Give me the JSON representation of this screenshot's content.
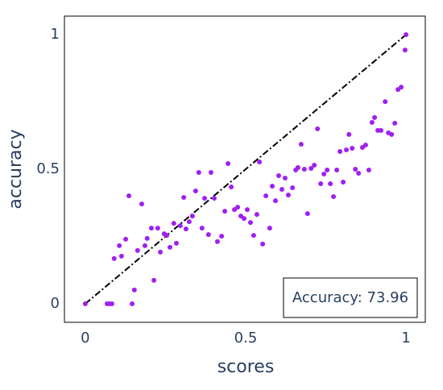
{
  "chart_data": {
    "type": "scatter",
    "x_label": "scores",
    "y_label": "accuracy",
    "annotation": "Accuracy: 73.96",
    "xlim": [
      -0.065,
      1.06
    ],
    "ylim": [
      -0.069,
      1.069
    ],
    "xticks": [
      0,
      0.5,
      1
    ],
    "yticks": [
      0,
      0.5,
      1
    ],
    "reference_line": {
      "x": [
        0,
        1
      ],
      "y": [
        0,
        1
      ],
      "color": "#000000"
    },
    "series": [
      {
        "color": "#a020f0",
        "x": [
          0,
          0.068,
          0.075,
          0.083,
          0.146,
          0.153,
          0.09,
          0.106,
          0.113,
          0.126,
          0.136,
          0.163,
          0.176,
          0.186,
          0.193,
          0.206,
          0.214,
          0.226,
          0.234,
          0.246,
          0.254,
          0.264,
          0.276,
          0.284,
          0.296,
          0.307,
          0.314,
          0.324,
          0.334,
          0.344,
          0.354,
          0.364,
          0.372,
          0.384,
          0.392,
          0.402,
          0.412,
          0.425,
          0.435,
          0.445,
          0.455,
          0.465,
          0.475,
          0.485,
          0.495,
          0.505,
          0.515,
          0.525,
          0.535,
          0.543,
          0.553,
          0.563,
          0.575,
          0.583,
          0.593,
          0.603,
          0.613,
          0.623,
          0.633,
          0.646,
          0.656,
          0.663,
          0.673,
          0.683,
          0.693,
          0.704,
          0.714,
          0.724,
          0.734,
          0.744,
          0.754,
          0.764,
          0.774,
          0.784,
          0.794,
          0.804,
          0.814,
          0.822,
          0.832,
          0.842,
          0.852,
          0.864,
          0.874,
          0.884,
          0.894,
          0.902,
          0.912,
          0.922,
          0.935,
          0.945,
          0.955,
          0.965,
          0.975,
          0.985,
          0.997,
          1
        ],
        "y": [
          0,
          0,
          0,
          0,
          0,
          0.051,
          0.168,
          0.216,
          0.177,
          0.24,
          0.401,
          0.198,
          0.371,
          0.216,
          0.243,
          0.281,
          0.087,
          0.281,
          0.192,
          0.26,
          0.254,
          0.21,
          0.299,
          0.225,
          0.29,
          0.395,
          0.278,
          0.305,
          0.326,
          0.419,
          0.488,
          0.281,
          0.392,
          0.257,
          0.488,
          0.392,
          0.231,
          0.251,
          0.344,
          0.521,
          0.434,
          0.35,
          0.359,
          0.326,
          0.317,
          0.35,
          0.302,
          0.254,
          0.332,
          0.527,
          0.222,
          0.401,
          0.281,
          0.437,
          0.383,
          0.476,
          0.425,
          0.467,
          0.404,
          0.431,
          0.497,
          0.506,
          0.593,
          0.5,
          0.335,
          0.503,
          0.515,
          0.65,
          0.446,
          0.482,
          0.497,
          0.446,
          0.398,
          0.497,
          0.566,
          0.452,
          0.572,
          0.629,
          0.578,
          0.5,
          0.485,
          0.581,
          0.59,
          0.497,
          0.674,
          0.692,
          0.644,
          0.644,
          0.751,
          0.635,
          0.629,
          0.671,
          0.796,
          0.805,
          0.943,
          1
        ]
      }
    ]
  }
}
